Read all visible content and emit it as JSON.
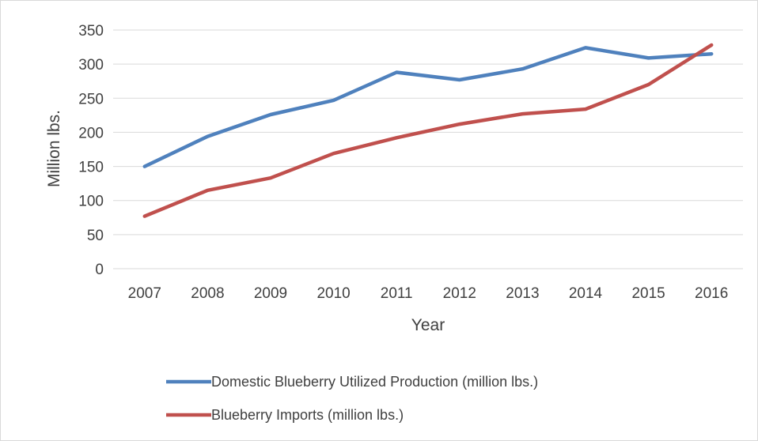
{
  "chart_data": {
    "type": "line",
    "title": "",
    "xlabel": "Year",
    "ylabel": "Million lbs.",
    "categories": [
      "2007",
      "2008",
      "2009",
      "2010",
      "2011",
      "2012",
      "2013",
      "2014",
      "2015",
      "2016"
    ],
    "ylim": [
      0,
      350
    ],
    "yticks": [
      0,
      50,
      100,
      150,
      200,
      250,
      300,
      350
    ],
    "grid": true,
    "legend_position": "bottom",
    "series": [
      {
        "name": "Domestic Blueberry Utilized Production (million lbs.)",
        "color": "#4f81bd",
        "values": [
          150,
          194,
          226,
          247,
          288,
          277,
          293,
          324,
          309,
          315
        ]
      },
      {
        "name": "Blueberry Imports (million lbs.)",
        "color": "#c0504d",
        "values": [
          77,
          115,
          133,
          169,
          192,
          212,
          227,
          234,
          270,
          328
        ]
      }
    ]
  }
}
